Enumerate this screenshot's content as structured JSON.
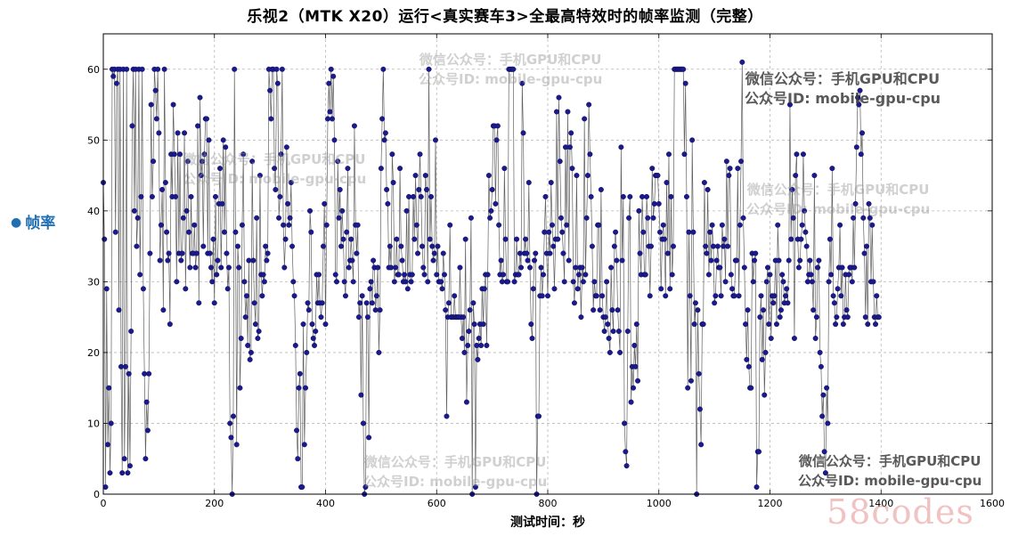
{
  "chart_data": {
    "type": "scatter",
    "title": "乐视2（MTK X20）运行<真实赛车3>全最高特效时的帧率监测（完整）",
    "xlabel": "测试时间：秒",
    "ylabel": "帧率",
    "xlim": [
      0,
      1600
    ],
    "ylim": [
      0,
      65
    ],
    "xticks": [
      0,
      200,
      400,
      600,
      800,
      1000,
      1200,
      1400,
      1600
    ],
    "yticks": [
      0,
      10,
      20,
      30,
      40,
      50,
      60
    ],
    "grid": true,
    "style": "markers connected by thin line",
    "marker_color": "#1a1a8c",
    "line_color": "#444444",
    "x_step": 2,
    "y": [
      44,
      36,
      1,
      29,
      7,
      15,
      3,
      10,
      60,
      59,
      60,
      37,
      58,
      60,
      26,
      60,
      18,
      3,
      60,
      5,
      18,
      60,
      3,
      17,
      4,
      23,
      52,
      60,
      40,
      60,
      35,
      39,
      60,
      31,
      42,
      60,
      29,
      17,
      5,
      13,
      9,
      17,
      34,
      55,
      42,
      47,
      60,
      57,
      53,
      60,
      51,
      33,
      38,
      43,
      26,
      60,
      44,
      37,
      33,
      34,
      24,
      48,
      42,
      55,
      48,
      42,
      30,
      51,
      34,
      48,
      33,
      34,
      39,
      51,
      29,
      40,
      47,
      37,
      32,
      42,
      34,
      34,
      38,
      32,
      34,
      52,
      27,
      56,
      45,
      47,
      35,
      48,
      53,
      53,
      34,
      50,
      34,
      32,
      30,
      36,
      27,
      42,
      31,
      33,
      41,
      46,
      32,
      41,
      50,
      37,
      49,
      34,
      29,
      32,
      10,
      8,
      0,
      11,
      60,
      37,
      7,
      35,
      32,
      15,
      22,
      38,
      48,
      30,
      25,
      28,
      21,
      33,
      19,
      20,
      47,
      33,
      27,
      24,
      39,
      22,
      23,
      45,
      31,
      28,
      31,
      30,
      35,
      33,
      34,
      60,
      57,
      53,
      60,
      60,
      46,
      43,
      60,
      58,
      39,
      42,
      48,
      60,
      38,
      32,
      36,
      49,
      41,
      38,
      39,
      44,
      35,
      30,
      28,
      21,
      9,
      5,
      15,
      17,
      1,
      1,
      24,
      7,
      15,
      20,
      27,
      26,
      40,
      37,
      24,
      22,
      21,
      23,
      31,
      27,
      31,
      27,
      25,
      27,
      35,
      41,
      24,
      38,
      53,
      58,
      54,
      60,
      53,
      59,
      50,
      31,
      30,
      47,
      39,
      43,
      35,
      40,
      36,
      30,
      28,
      37,
      46,
      32,
      33,
      36,
      33,
      30,
      52,
      38,
      34,
      38,
      25,
      27,
      14,
      28,
      10,
      0,
      1,
      27,
      25,
      8,
      29,
      30,
      27,
      33,
      32,
      26,
      28,
      32,
      20,
      26,
      46,
      53,
      60,
      50,
      51,
      43,
      41,
      32,
      35,
      32,
      48,
      44,
      30,
      32,
      36,
      31,
      31,
      46,
      35,
      33,
      30,
      31,
      30,
      40,
      29,
      42,
      31,
      30,
      31,
      42,
      36,
      45,
      38,
      34,
      43,
      48,
      42,
      35,
      32,
      31,
      45,
      43,
      30,
      60,
      36,
      42,
      35,
      33,
      34,
      50,
      31,
      35,
      30,
      30,
      30,
      29,
      34,
      31,
      26,
      11,
      25,
      27,
      38,
      25,
      25,
      25,
      28,
      25,
      25,
      25,
      25,
      32,
      25,
      22,
      25,
      20,
      36,
      13,
      21,
      23,
      26,
      39,
      0,
      27,
      24,
      1,
      21,
      19,
      22,
      24,
      21,
      29,
      24,
      29,
      31,
      21,
      31,
      45,
      39,
      40,
      43,
      52,
      52,
      41,
      50,
      52,
      38,
      31,
      33,
      30,
      31,
      46,
      36,
      30,
      30,
      60,
      60,
      60,
      60,
      60,
      30,
      31,
      36,
      31,
      31,
      34,
      32,
      58,
      51,
      34,
      36,
      34,
      33,
      44,
      32,
      24,
      22,
      29,
      33,
      34,
      0,
      11,
      11,
      28,
      32,
      28,
      31,
      37,
      42,
      34,
      28,
      37,
      34,
      44,
      38,
      35,
      29,
      36,
      54,
      36,
      56,
      47,
      39,
      37,
      34,
      30,
      49,
      38,
      54,
      33,
      49,
      51,
      46,
      30,
      27,
      32,
      45,
      29,
      31,
      32,
      25,
      32,
      30,
      53,
      31,
      39,
      45,
      55,
      48,
      42,
      35,
      26,
      30,
      28,
      28,
      38,
      38,
      26,
      43,
      28,
      25,
      23,
      25,
      30,
      24,
      22,
      20,
      32,
      26,
      23,
      35,
      37,
      33,
      26,
      23,
      20,
      49,
      33,
      42,
      10,
      6,
      4,
      23,
      39,
      42,
      13,
      18,
      15,
      21,
      18,
      24,
      16,
      40,
      34,
      31,
      42,
      37,
      31,
      31,
      42,
      39,
      35,
      28,
      35,
      46,
      39,
      41,
      45,
      45,
      45,
      41,
      37,
      29,
      36,
      38,
      36,
      28,
      44,
      34,
      48,
      29,
      42,
      31,
      35,
      60,
      60,
      60,
      60,
      60,
      60,
      60,
      60,
      60,
      48,
      58,
      42,
      15,
      37,
      28,
      16,
      50,
      37,
      24,
      27,
      0,
      26,
      17,
      12,
      7,
      24,
      24,
      44,
      35,
      34,
      43,
      31,
      37,
      33,
      38,
      35,
      27,
      28,
      33,
      35,
      32,
      32,
      28,
      38,
      35,
      36,
      30,
      47,
      35,
      45,
      46,
      31,
      29,
      28,
      28,
      33,
      33,
      46,
      28,
      38,
      47,
      61,
      39,
      32,
      24,
      19,
      26,
      18,
      15,
      15,
      34,
      30,
      33,
      34,
      1,
      6,
      6,
      25,
      28,
      19,
      26,
      14,
      20,
      30,
      32,
      24,
      31,
      22,
      28,
      27,
      28,
      33,
      24,
      38,
      33,
      25,
      26,
      31,
      30,
      27,
      28,
      29,
      27,
      33,
      55,
      36,
      43,
      39,
      22,
      45,
      48,
      36,
      32,
      33,
      36,
      38,
      48,
      40,
      37,
      35,
      30,
      31,
      33,
      31,
      30,
      26,
      45,
      22,
      25,
      32,
      33,
      20,
      18,
      11,
      14,
      6,
      3,
      15,
      10,
      30,
      36,
      31,
      46,
      28,
      27,
      24,
      25,
      29,
      32,
      38,
      28,
      32,
      24,
      25,
      31,
      26,
      25,
      31,
      32,
      32,
      30,
      39,
      32,
      41,
      49,
      56,
      55,
      57,
      48,
      51,
      39,
      34,
      25,
      35,
      24,
      41,
      39,
      30,
      38,
      30,
      25,
      24,
      28,
      25,
      25
    ]
  },
  "watermarks": {
    "line1": "微信公众号：手机GPU和CPU",
    "line2": "公众号ID: mobile-gpu-cpu"
  },
  "brand": "58codes"
}
